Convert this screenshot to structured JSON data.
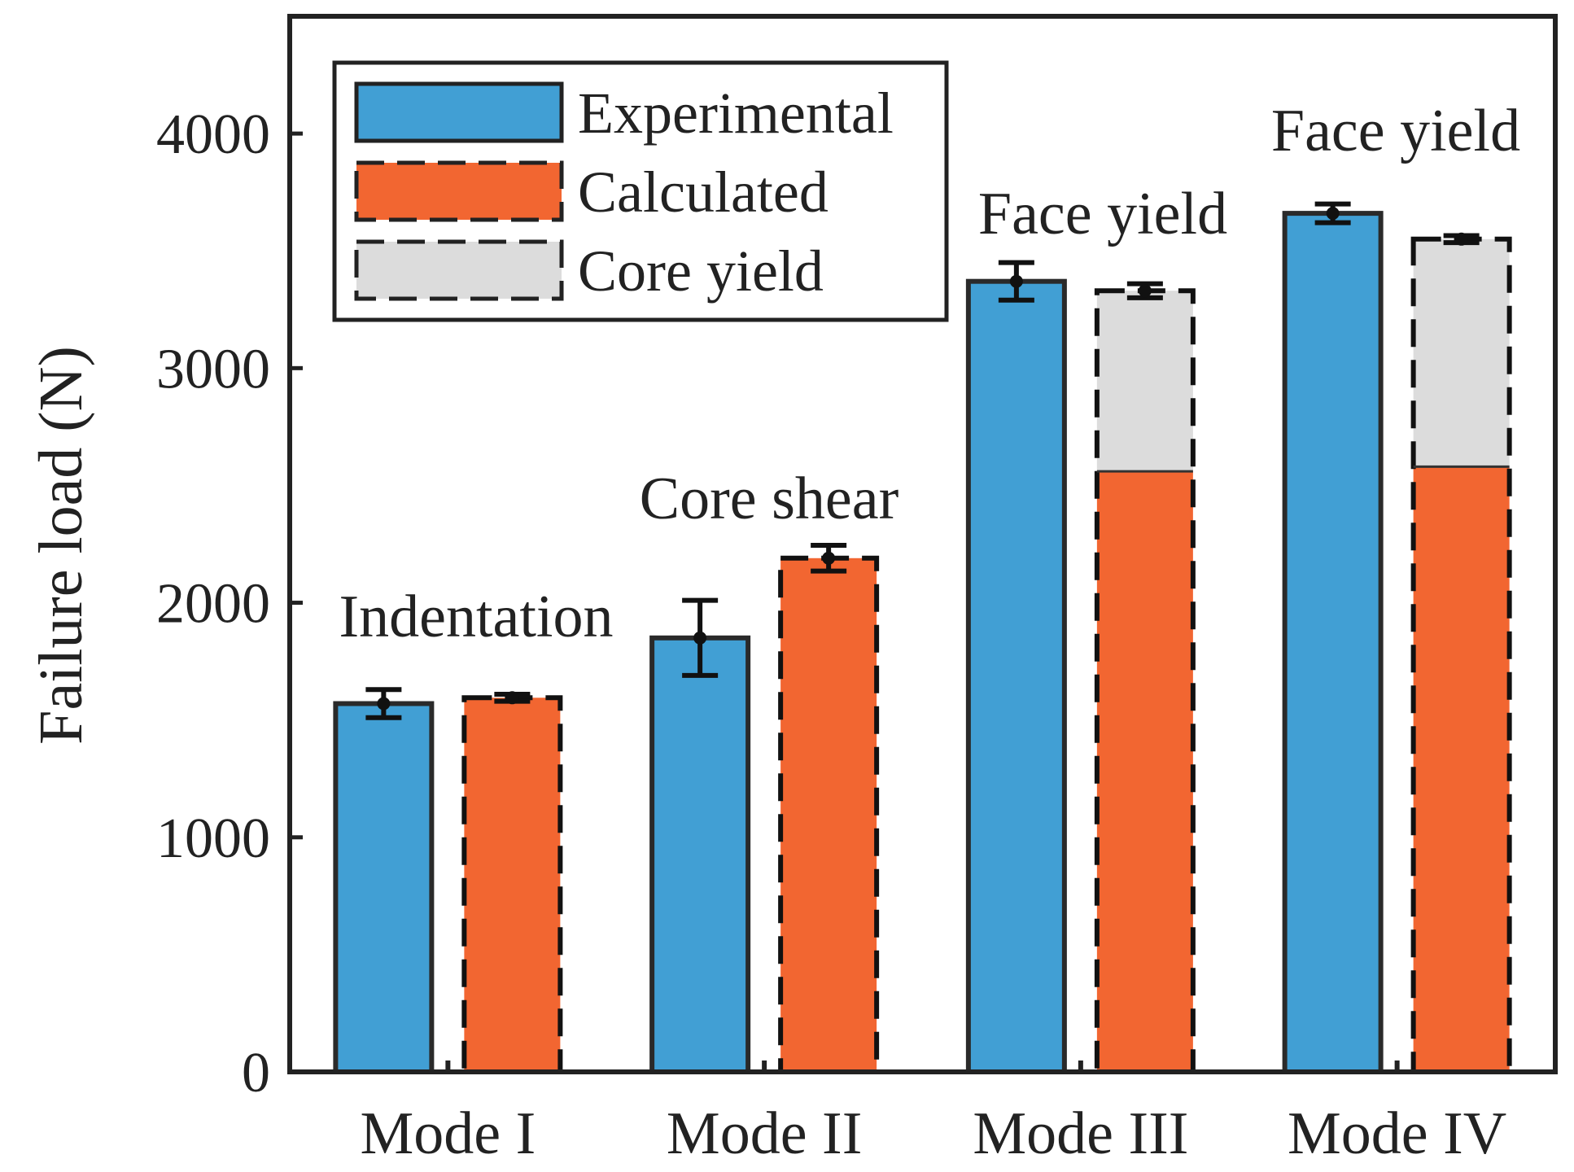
{
  "chart_data": {
    "type": "bar",
    "title": "",
    "xlabel": "",
    "ylabel": "Failure load (N)",
    "ylim": [
      0,
      4500
    ],
    "yticks": [
      0,
      1000,
      2000,
      3000,
      4000
    ],
    "grid": false,
    "legend_position": "top-left",
    "categories": [
      "Mode I",
      "Mode II",
      "Mode III",
      "Mode IV"
    ],
    "series": [
      {
        "name": "Experimental",
        "color": "#419fd4",
        "values": [
          1570,
          1850,
          3370,
          3660
        ],
        "error": [
          60,
          160,
          80,
          40
        ]
      },
      {
        "name": "Calculated",
        "color": "#f26631",
        "values": [
          1595,
          2190,
          2560,
          2580
        ],
        "error": [
          15,
          55,
          0,
          0
        ]
      },
      {
        "name": "Core yield",
        "color": "#dcdcdc",
        "values": [
          null,
          null,
          3330,
          3550
        ],
        "error": [
          0,
          0,
          30,
          15
        ]
      }
    ],
    "annotations": [
      "Indentation",
      "Core shear",
      "Face yield",
      "Face yield"
    ]
  }
}
